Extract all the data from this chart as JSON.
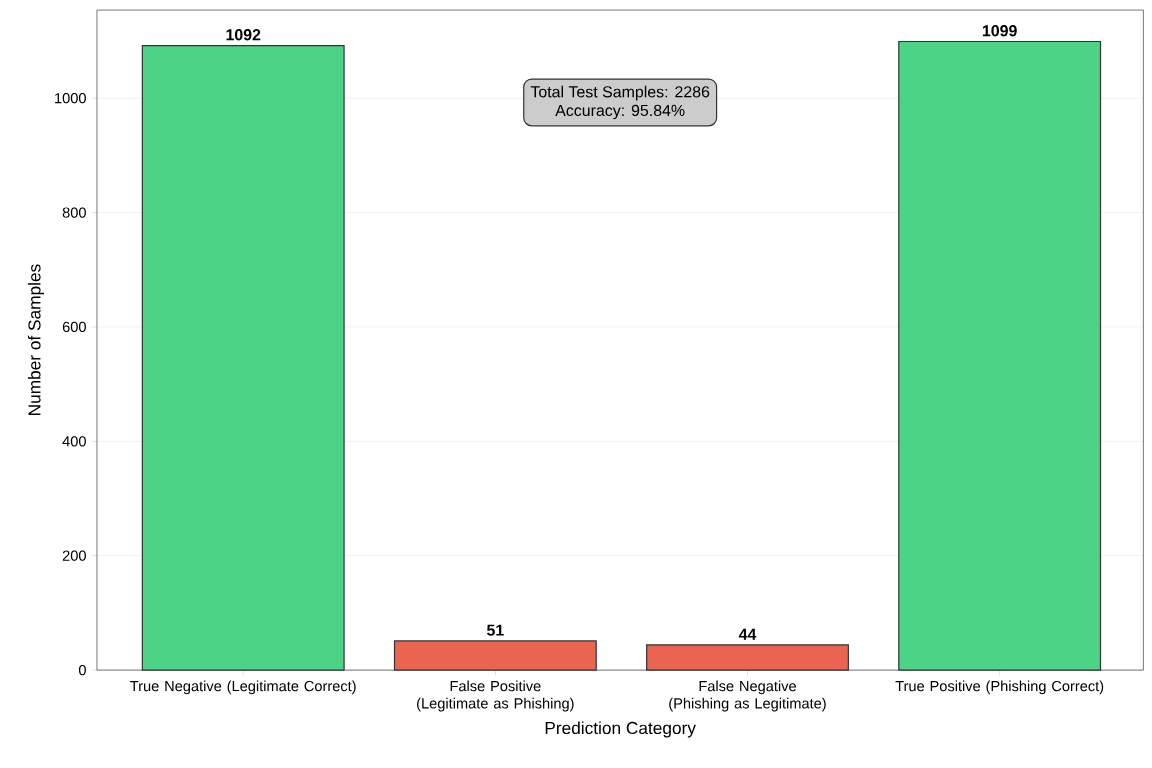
{
  "chart_data": {
    "type": "bar",
    "xlabel": "Prediction Category",
    "ylabel": "Number of Samples",
    "categories": [
      "True Negative (Legitimate Correct)",
      "False Positive (Legitimate as Phishing)",
      "False Negative (Phishing as Legitimate)",
      "True Positive (Phishing Correct)"
    ],
    "values": [
      1092,
      51,
      44,
      1099
    ],
    "colors": [
      "#4dd385",
      "#eb6351",
      "#eb6351",
      "#4dd385"
    ],
    "ylim": [
      0,
      1154
    ],
    "yticks": [
      0,
      200,
      400,
      600,
      800,
      1000
    ],
    "grid": "y",
    "data_labels": true,
    "annotations": [
      "Total Test Samples: 2286",
      "Accuracy: 95.84%"
    ]
  }
}
